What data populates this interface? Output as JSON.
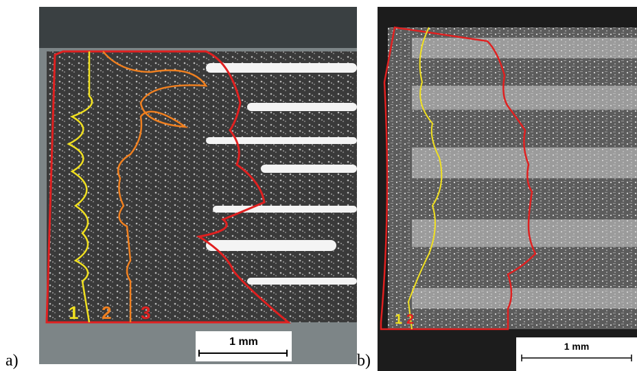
{
  "panels": [
    {
      "label": "a)",
      "zones": [
        "1",
        "2",
        "3"
      ],
      "scale_bar": "1 mm"
    },
    {
      "label": "b)",
      "zones": [
        "1",
        "2"
      ],
      "scale_bar": "1 mm"
    }
  ]
}
